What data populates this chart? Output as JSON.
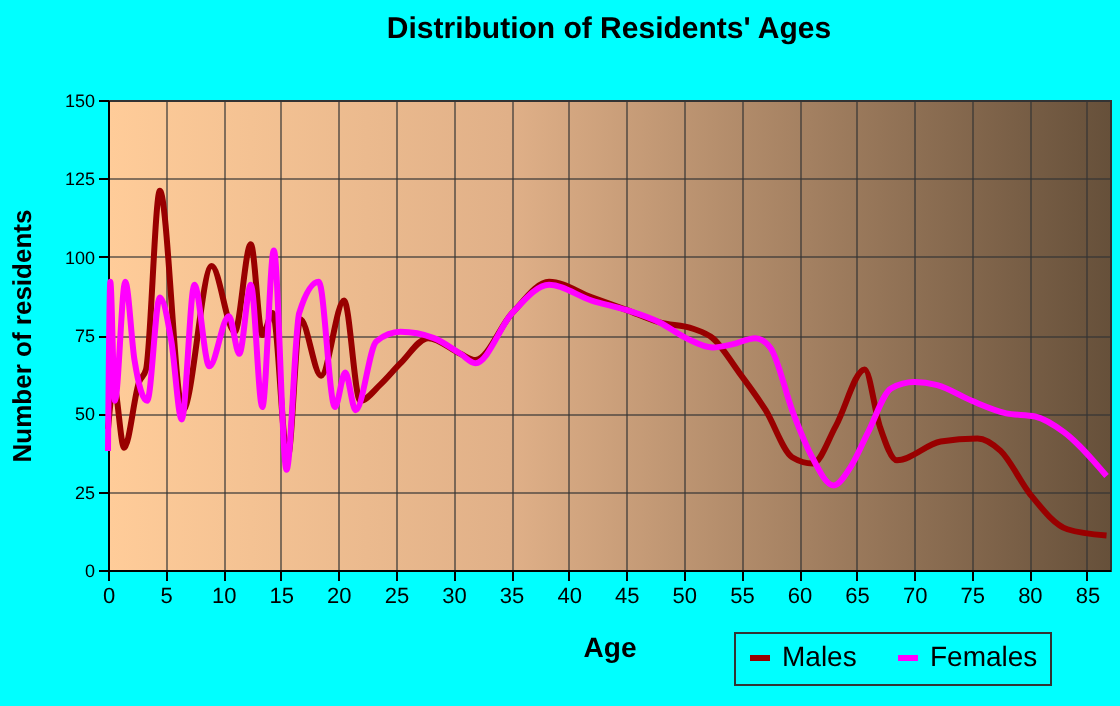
{
  "chart_data": {
    "type": "line",
    "title": "Distribution of Residents' Ages",
    "xlabel": "Age",
    "ylabel": "Number of residents",
    "xlim": [
      0,
      87
    ],
    "xticks": [
      0,
      5,
      10,
      15,
      20,
      25,
      30,
      35,
      40,
      45,
      50,
      55,
      60,
      65,
      70,
      75,
      80,
      85
    ],
    "ylim": [
      0,
      150
    ],
    "yticks": [
      0,
      25,
      50,
      75,
      100,
      125,
      150
    ],
    "grid": true,
    "legend": "bottom right",
    "line_style": "solid",
    "series": [
      {
        "name": "Males",
        "color": "#990000",
        "x": [
          0,
          0.5,
          1.4,
          2.7,
          3.3,
          4.5,
          6.5,
          9,
          11,
          12.4,
          13.4,
          14.3,
          15.6,
          16.7,
          18.5,
          20.5,
          21.9,
          23.6,
          25.4,
          27.8,
          30.6,
          31.9,
          35.1,
          38.3,
          42,
          45,
          47.9,
          50.8,
          52.5,
          54.8,
          57.1,
          59.4,
          61.2,
          63.2,
          65.7,
          67,
          68.5,
          72.3,
          75.5,
          77.5,
          80.1,
          83.3,
          86.7
        ],
        "values": [
          45,
          59,
          39,
          60,
          64,
          121,
          51,
          97,
          76,
          104,
          75,
          82,
          36,
          80,
          62,
          86,
          54,
          59,
          66,
          74,
          69,
          67,
          82,
          92,
          87,
          83,
          79,
          77,
          74,
          63,
          51,
          36,
          34,
          46,
          64,
          46,
          35,
          41,
          42,
          38,
          24,
          13,
          11
        ]
      },
      {
        "name": "Females",
        "color": "#ff00ff",
        "x": [
          0,
          0.2,
          0.6,
          1.5,
          2.3,
          3.4,
          4.5,
          5.5,
          6.4,
          7.5,
          8.8,
          10.5,
          11.4,
          12.4,
          13.4,
          14.4,
          15.5,
          16.6,
          18.3,
          19.7,
          20.6,
          21.5,
          23.3,
          25.4,
          28.3,
          30.6,
          31.9,
          35.1,
          38.3,
          42,
          45,
          47.9,
          50.2,
          52.5,
          54.2,
          56.2,
          57.5,
          59.5,
          61,
          63,
          64.5,
          66,
          68,
          70,
          72,
          75,
          78,
          80.5,
          83,
          86.7
        ],
        "values": [
          38,
          92,
          54,
          92,
          67,
          54,
          87,
          73,
          48,
          91,
          65,
          81,
          69,
          91,
          52,
          102,
          32,
          82,
          92,
          52,
          63,
          51,
          73,
          76,
          74,
          69,
          66,
          82,
          91,
          86,
          83,
          79,
          74,
          71,
          72,
          74,
          71,
          50,
          37,
          27,
          33,
          44,
          58,
          60,
          59,
          54,
          50,
          49,
          44,
          30
        ]
      }
    ]
  }
}
